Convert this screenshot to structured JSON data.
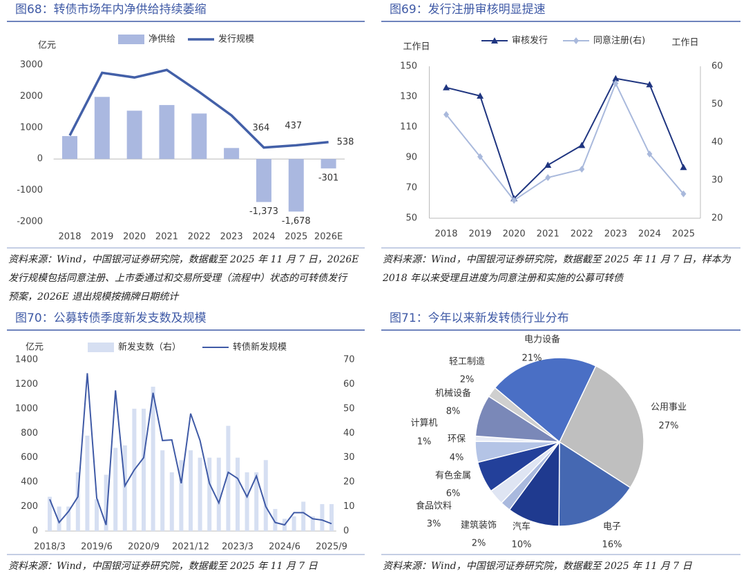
{
  "chart_data": [
    {
      "type": "combo",
      "title": "图68：转债市场年内净供给持续萎缩",
      "y_label": "亿元",
      "categories": [
        "2018",
        "2019",
        "2020",
        "2021",
        "2022",
        "2023",
        "2024",
        "2025",
        "2026E"
      ],
      "series": [
        {
          "name": "净供给",
          "type": "bar",
          "color": "#aab8e0",
          "values": [
            730,
            1980,
            1540,
            1720,
            1450,
            350,
            -1373,
            -1678,
            -301
          ],
          "value_labels": [
            null,
            null,
            null,
            null,
            null,
            null,
            "-1,373",
            "-1,678",
            "-301"
          ]
        },
        {
          "name": "发行规模",
          "type": "line",
          "color": "#4360a8",
          "values": [
            750,
            2750,
            2600,
            2840,
            2140,
            1390,
            364,
            437,
            538
          ],
          "value_labels": [
            null,
            null,
            null,
            null,
            null,
            null,
            "364",
            "437",
            "538"
          ]
        }
      ],
      "ylim": [
        -2000,
        3000
      ],
      "yticks": [
        -2000,
        -1000,
        0,
        1000,
        2000,
        3000
      ],
      "source": [
        "资料来源：Wind，中国银河证券研究院，数据截至 2025 年 11 月 7 日，2026E",
        "发行规模包括同意注册、上市委通过和交易所受理（流程中）状态的可转债发行",
        "预案，2026E 退出规模按摘牌日期统计"
      ]
    },
    {
      "type": "line",
      "title": "图69：发行注册审核明显提速",
      "y_label": "工作日",
      "y2_label": "工作日",
      "categories": [
        "2018",
        "2019",
        "2020",
        "2021",
        "2022",
        "2023",
        "2024",
        "2025"
      ],
      "series": [
        {
          "name": "审核发行",
          "type": "line",
          "marker": "triangle",
          "color": "#1f3580",
          "values": [
            136,
            130.5,
            63,
            85,
            98,
            142,
            138,
            83.5
          ]
        },
        {
          "name": "同意注册(右)",
          "type": "line",
          "marker": "diamond",
          "axis": "y2",
          "color": "#a9b9dc",
          "values": [
            47.3,
            36.2,
            24.7,
            30.7,
            32.9,
            55.5,
            36.9,
            26.4
          ]
        }
      ],
      "ylim": [
        50,
        150
      ],
      "yticks": [
        50,
        70,
        90,
        110,
        130,
        150
      ],
      "y2lim": [
        20,
        60
      ],
      "y2ticks": [
        20,
        30,
        40,
        50,
        60
      ],
      "source": [
        "资料来源：Wind，中国银河证券研究院，数据截至 2025 年 11 月 7 日，样本为",
        "2018 年以来受理且进度为同意注册和实施的公募可转债"
      ]
    },
    {
      "type": "combo",
      "title": "图70：公募转债季度新发支数及规模",
      "y_label": "亿元",
      "categories": [
        "2018/3",
        null,
        null,
        null,
        null,
        "2019/6",
        null,
        null,
        null,
        null,
        "2020/9",
        null,
        null,
        null,
        null,
        "2021/12",
        null,
        null,
        null,
        null,
        "2023/3",
        null,
        null,
        null,
        null,
        "2024/6",
        null,
        null,
        null,
        null,
        "2025/9"
      ],
      "series": [
        {
          "name": "新发支数（右）",
          "type": "bar",
          "axis": "y2",
          "color": "#d6dff2",
          "values": [
            14,
            10,
            10,
            24,
            39,
            13,
            23,
            34,
            35,
            50,
            50,
            59,
            33,
            24,
            29,
            33,
            30,
            30,
            30,
            43,
            30,
            24,
            24,
            29,
            9,
            5,
            6,
            12,
            6,
            11,
            11
          ]
        },
        {
          "name": "转债新发规模",
          "type": "line",
          "color": "#3f5aa6",
          "values": [
            260,
            70,
            160,
            280,
            1290,
            270,
            50,
            1150,
            370,
            500,
            600,
            1130,
            740,
            745,
            390,
            960,
            740,
            390,
            230,
            480,
            430,
            280,
            450,
            200,
            70,
            50,
            150,
            150,
            100,
            90,
            60
          ]
        }
      ],
      "ylim": [
        0,
        1400
      ],
      "yticks": [
        0,
        200,
        400,
        600,
        800,
        1000,
        1200,
        1400
      ],
      "y2lim": [
        0,
        70
      ],
      "y2ticks": [
        0,
        10,
        20,
        30,
        40,
        50,
        60,
        70
      ],
      "source": [
        "资料来源：Wind，中国银河证券研究院，数据截至 2025 年 11 月 7 日"
      ]
    },
    {
      "type": "pie",
      "title": "图71：今年以来新发转债行业分布",
      "categories": [
        "电力设备",
        "公用事业",
        "电子",
        "汽车",
        "建筑装饰",
        "食品饮料",
        "有色金属",
        "环保",
        "计算机",
        "机械设备",
        "轻工制造"
      ],
      "values": [
        21,
        27,
        16,
        10,
        2,
        3,
        6,
        4,
        1,
        8,
        2
      ],
      "value_labels": [
        "21%",
        "27%",
        "16%",
        "10%",
        "2%",
        "3%",
        "6%",
        "4%",
        "1%",
        "8%",
        "2%"
      ],
      "colors": [
        "#4a6fc5",
        "#bfbfbf",
        "#4568b2",
        "#1f3a8f",
        "#a9b9de",
        "#dfe5f3",
        "#23409a",
        "#b4c4e6",
        "#e8ecf6",
        "#7a88b8",
        "#cfcfcf"
      ],
      "source": [
        "资料来源：Wind，中国银河证券研究院，数据截至 2025 年 11 月 7 日"
      ]
    }
  ]
}
